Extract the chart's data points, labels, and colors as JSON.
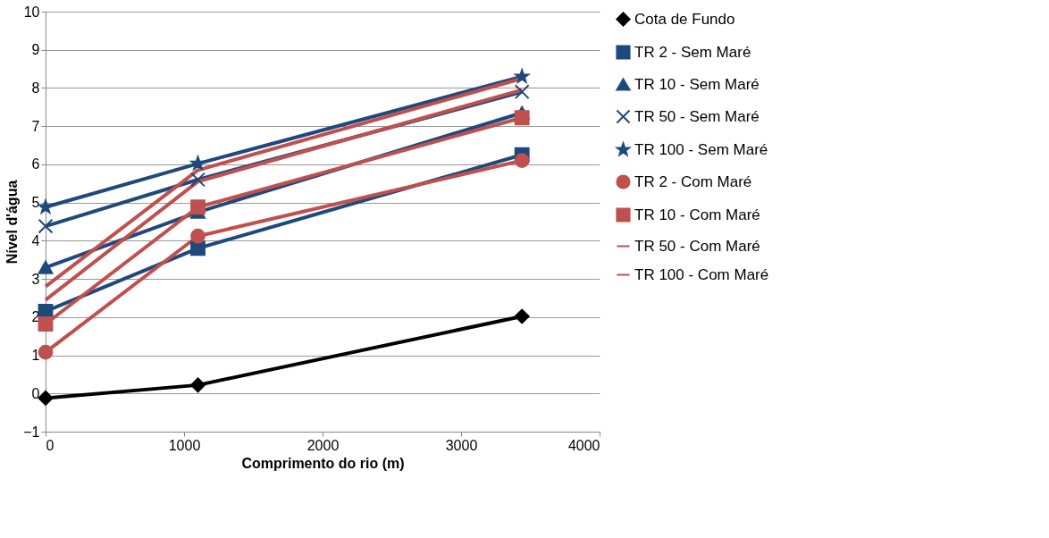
{
  "chart_data": {
    "type": "line",
    "xlabel": "Comprimento do rio (m)",
    "ylabel": "Nível d'água",
    "x": [
      0,
      1100,
      3440
    ],
    "xlim": [
      0,
      4000
    ],
    "xticks": [
      0,
      1000,
      2000,
      3000,
      4000
    ],
    "ylim": [
      -1,
      10
    ],
    "yticks": [
      -1,
      0,
      1,
      2,
      3,
      4,
      5,
      6,
      7,
      8,
      9,
      10
    ],
    "grid": "y",
    "legend": "right",
    "series": [
      {
        "name": "Cota de Fundo",
        "color": "#000000",
        "marker": "diamond",
        "values": [
          -0.12,
          0.22,
          2.02
        ]
      },
      {
        "name": "TR 2 - Sem Maré",
        "color": "#1f497d",
        "marker": "square",
        "values": [
          2.15,
          3.8,
          6.25
        ]
      },
      {
        "name": "TR 10 - Sem Maré",
        "color": "#1f497d",
        "marker": "triangle",
        "values": [
          3.3,
          4.75,
          7.35
        ]
      },
      {
        "name": "TR 50 - Sem Maré",
        "color": "#1f497d",
        "marker": "cross",
        "values": [
          4.38,
          5.6,
          7.9
        ]
      },
      {
        "name": "TR 100 - Sem Maré",
        "color": "#1f497d",
        "marker": "star",
        "values": [
          4.88,
          6.02,
          8.3
        ]
      },
      {
        "name": "TR 2 - Com Maré",
        "color": "#c0504d",
        "marker": "circle",
        "values": [
          1.08,
          4.12,
          6.1
        ]
      },
      {
        "name": "TR 10 - Com Maré",
        "color": "#c0504d",
        "marker": "square",
        "values": [
          1.82,
          4.88,
          7.22
        ]
      },
      {
        "name": "TR 50 - Com Maré",
        "color": "#c0504d",
        "marker": "none",
        "values": [
          2.45,
          5.55,
          7.95
        ]
      },
      {
        "name": "TR 100 - Com Maré",
        "color": "#c0504d",
        "marker": "none",
        "values": [
          2.8,
          5.85,
          8.25
        ]
      }
    ]
  }
}
